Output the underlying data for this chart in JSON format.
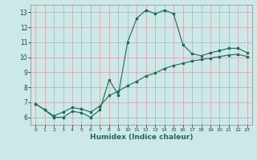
{
  "title": "",
  "xlabel": "Humidex (Indice chaleur)",
  "ylabel": "",
  "bg_color": "#cce8e8",
  "grid_color": "#b8d8d8",
  "line_color": "#1a6b5a",
  "xlim": [
    -0.5,
    23.5
  ],
  "ylim": [
    5.5,
    13.5
  ],
  "xticks": [
    0,
    1,
    2,
    3,
    4,
    5,
    6,
    7,
    8,
    9,
    10,
    11,
    12,
    13,
    14,
    15,
    16,
    17,
    18,
    19,
    20,
    21,
    22,
    23
  ],
  "yticks": [
    6,
    7,
    8,
    9,
    10,
    11,
    12,
    13
  ],
  "line1_x": [
    0,
    1,
    2,
    3,
    4,
    5,
    6,
    7,
    8,
    9,
    10,
    11,
    12,
    13,
    14,
    15,
    16,
    17,
    18,
    19,
    20,
    21,
    22,
    23
  ],
  "line1_y": [
    6.9,
    6.5,
    6.0,
    6.0,
    6.4,
    6.3,
    6.0,
    6.5,
    8.5,
    7.5,
    11.0,
    12.6,
    13.15,
    12.9,
    13.15,
    12.9,
    10.85,
    10.25,
    10.1,
    10.3,
    10.45,
    10.6,
    10.6,
    10.3
  ],
  "line2_x": [
    0,
    1,
    2,
    3,
    4,
    5,
    6,
    7,
    8,
    9,
    10,
    11,
    12,
    13,
    14,
    15,
    16,
    17,
    18,
    19,
    20,
    21,
    22,
    23
  ],
  "line2_y": [
    6.9,
    6.5,
    6.1,
    6.35,
    6.65,
    6.55,
    6.35,
    6.75,
    7.45,
    7.75,
    8.1,
    8.4,
    8.75,
    8.95,
    9.25,
    9.45,
    9.6,
    9.75,
    9.85,
    9.95,
    10.05,
    10.15,
    10.2,
    10.05
  ]
}
